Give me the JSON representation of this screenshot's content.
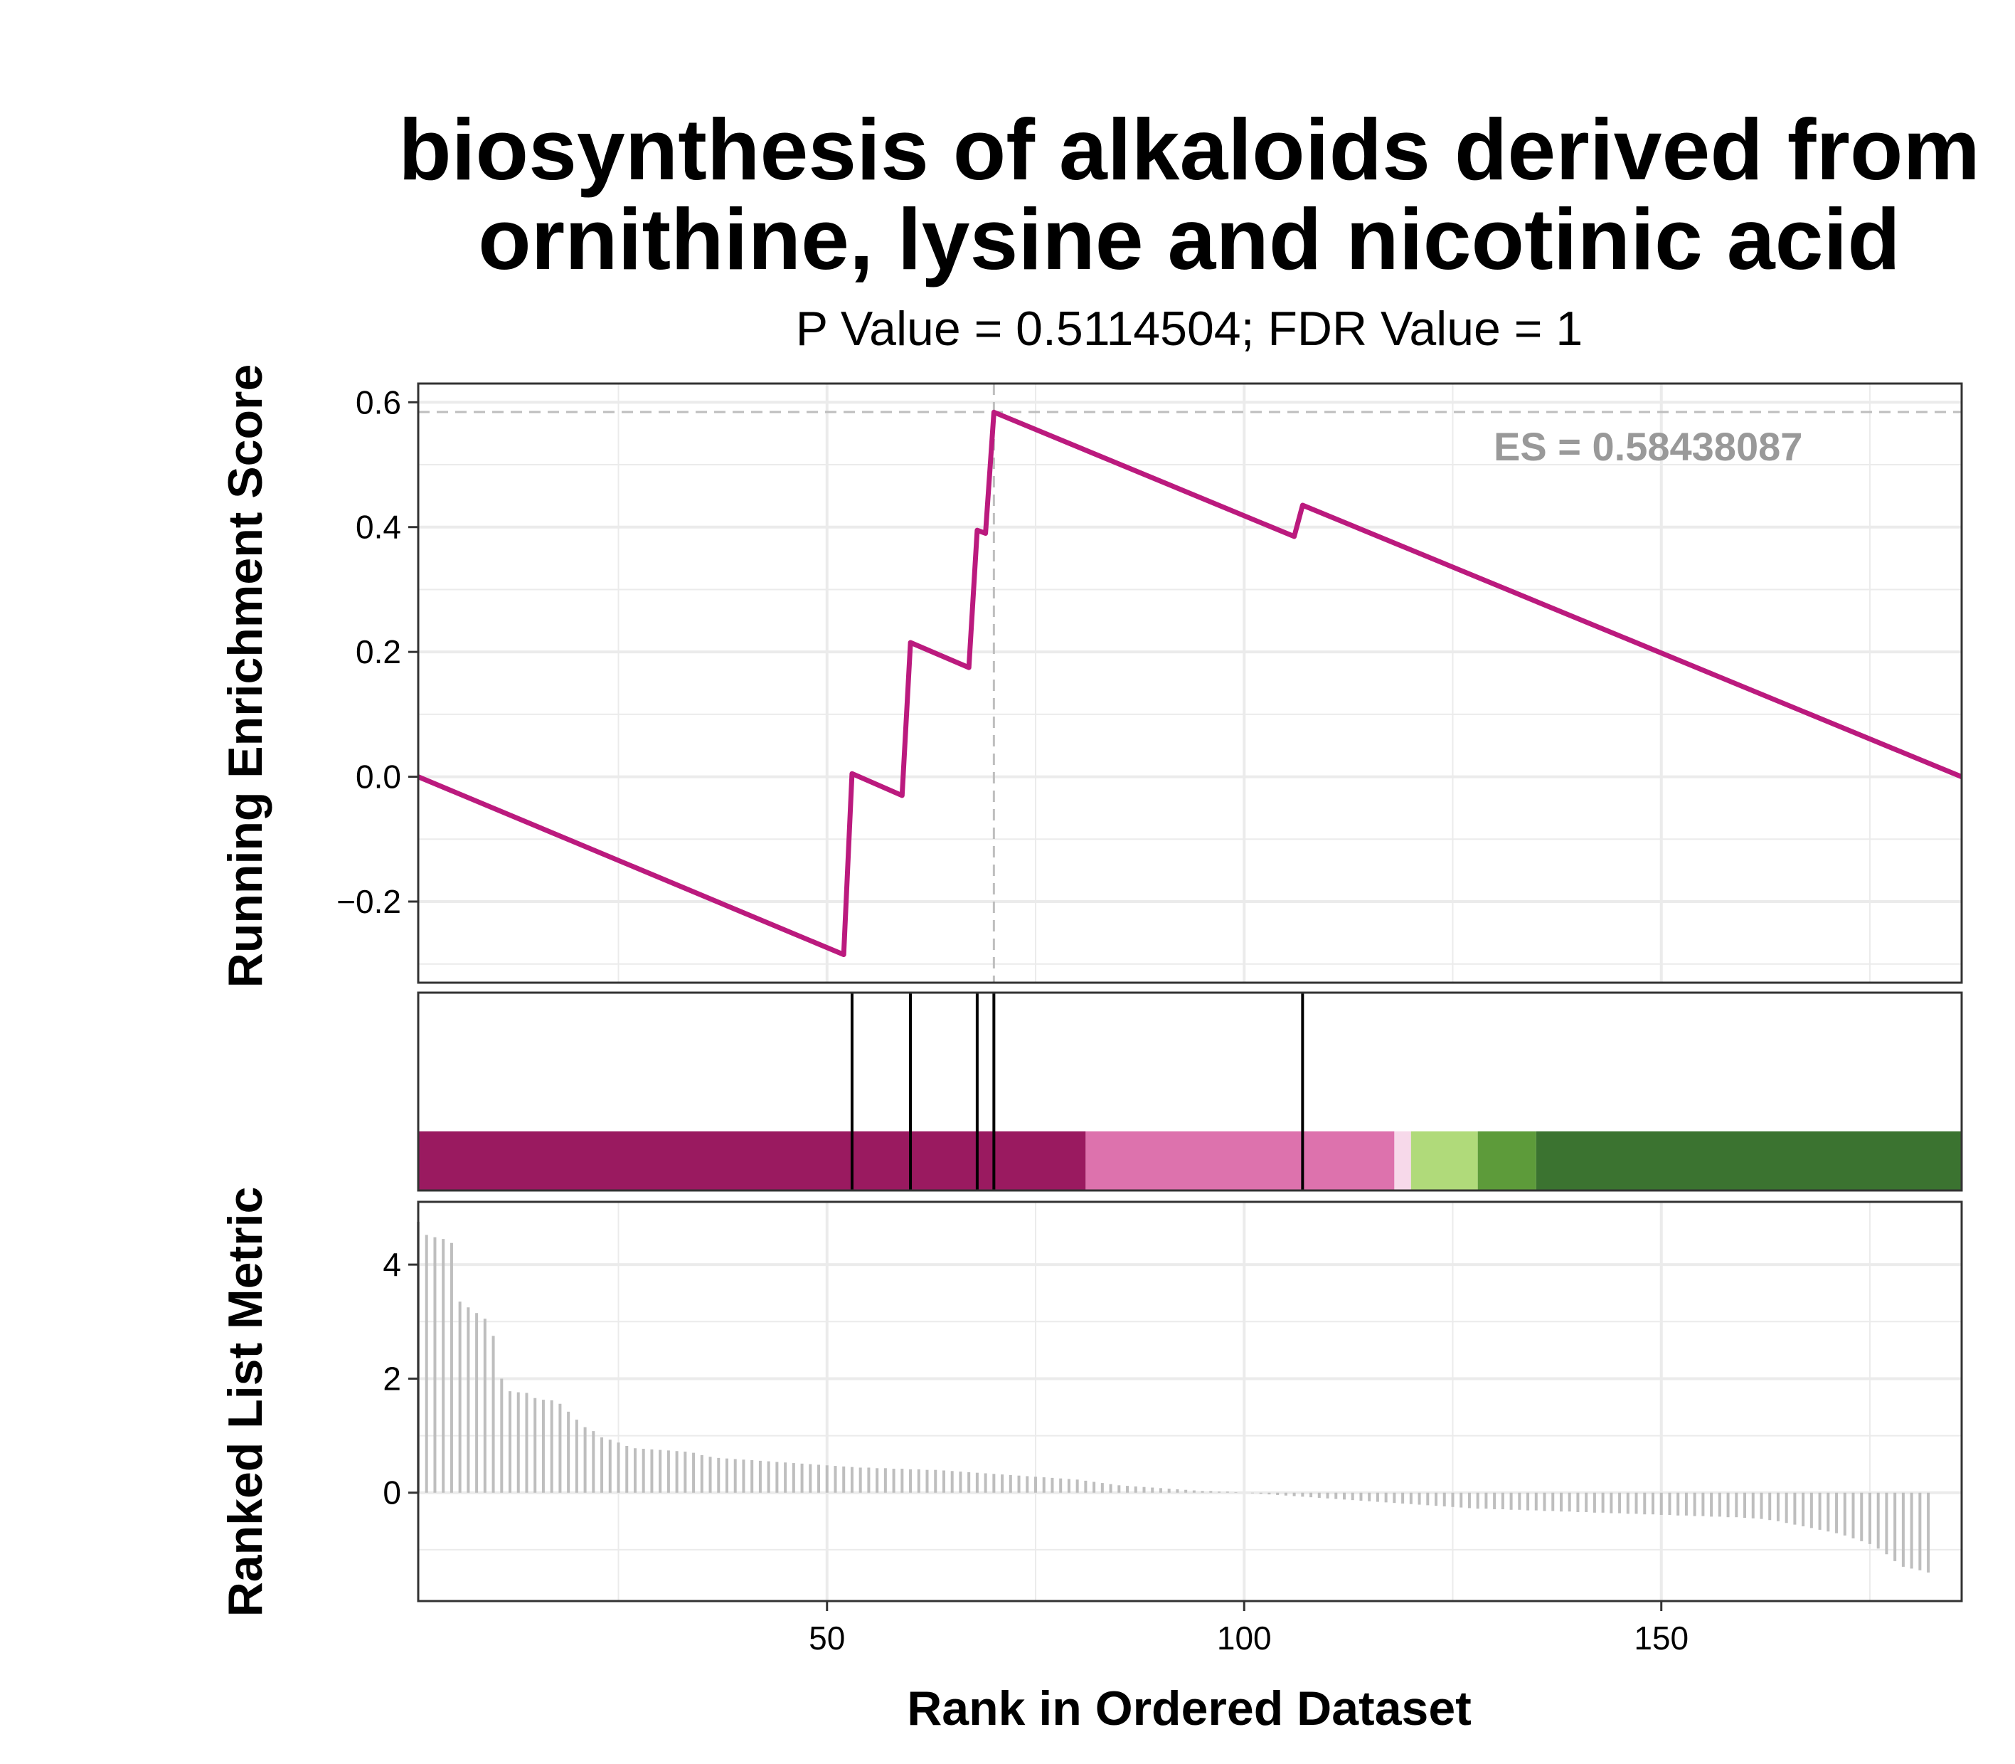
{
  "title_lines": [
    "biosynthesis of alkaloids derived from",
    "ornithine, lysine and nicotinic acid"
  ],
  "subtitle": "P Value = 0.5114504; FDR Value = 1",
  "es_label": "ES = 0.58438087",
  "colors": {
    "es_line": "#BB1A7E",
    "hit_line": "#000000",
    "metric_bar": "#BEBEBE",
    "grid": "#EBEBEB",
    "ref_line": "#BEBEBE",
    "heatmap": [
      "#9A1A60",
      "#DD72AD",
      "#F7D9EA",
      "#B0DA7A",
      "#5D9B3A",
      "#3B7330"
    ]
  },
  "chart_data": [
    {
      "type": "line",
      "panel": "running-enrichment-score",
      "ylabel": "Running Enrichment Score",
      "ylim": [
        -0.33,
        0.63
      ],
      "y_ticks": [
        -0.2,
        0.0,
        0.2,
        0.4,
        0.6
      ],
      "y_tick_labels": [
        "−0.2",
        "0.0",
        "0.2",
        "0.4",
        "0.6"
      ],
      "xlim": [
        1,
        186
      ],
      "grid": true,
      "series": [
        {
          "x": [
            1,
            52,
            53,
            59,
            60,
            67,
            68,
            69,
            70,
            106,
            107,
            186
          ],
          "y": [
            0.0,
            -0.285,
            0.005,
            -0.03,
            0.215,
            0.175,
            0.395,
            0.39,
            0.584,
            0.385,
            0.435,
            0.0
          ]
        }
      ],
      "es": 0.58438087,
      "es_rank": 70
    },
    {
      "type": "hits",
      "panel": "gene-set-hits",
      "hit_ranks": [
        53,
        60,
        68,
        70,
        107
      ],
      "heatmap_segments": [
        {
          "start": 1,
          "end": 81,
          "color_index": 0
        },
        {
          "start": 81,
          "end": 118,
          "color_index": 1
        },
        {
          "start": 118,
          "end": 120,
          "color_index": 2
        },
        {
          "start": 120,
          "end": 128,
          "color_index": 3
        },
        {
          "start": 128,
          "end": 135,
          "color_index": 4
        },
        {
          "start": 135,
          "end": 186,
          "color_index": 5
        }
      ]
    },
    {
      "type": "bar",
      "panel": "ranked-list-metric",
      "ylabel": "Ranked List Metric",
      "xlabel": "Rank in Ordered Dataset",
      "ylim": [
        -1.9,
        5.1
      ],
      "y_ticks": [
        0,
        2,
        4
      ],
      "y_tick_labels": [
        "0",
        "2",
        "4"
      ],
      "x_ticks": [
        50,
        100,
        150
      ],
      "x_tick_labels": [
        "50",
        "100",
        "150"
      ],
      "xlim": [
        1,
        186
      ],
      "grid": true,
      "values": [
        4.75,
        4.52,
        4.48,
        4.45,
        4.38,
        3.35,
        3.25,
        3.15,
        3.05,
        2.75,
        2.0,
        1.78,
        1.76,
        1.75,
        1.66,
        1.63,
        1.62,
        1.56,
        1.42,
        1.28,
        1.15,
        1.08,
        0.97,
        0.93,
        0.88,
        0.82,
        0.78,
        0.77,
        0.76,
        0.75,
        0.74,
        0.73,
        0.72,
        0.7,
        0.66,
        0.63,
        0.61,
        0.6,
        0.59,
        0.58,
        0.57,
        0.56,
        0.55,
        0.54,
        0.53,
        0.52,
        0.51,
        0.5,
        0.49,
        0.48,
        0.47,
        0.46,
        0.45,
        0.44,
        0.44,
        0.43,
        0.43,
        0.42,
        0.42,
        0.41,
        0.41,
        0.4,
        0.4,
        0.39,
        0.38,
        0.37,
        0.36,
        0.35,
        0.34,
        0.33,
        0.32,
        0.31,
        0.3,
        0.29,
        0.28,
        0.27,
        0.26,
        0.25,
        0.24,
        0.23,
        0.21,
        0.19,
        0.17,
        0.15,
        0.13,
        0.12,
        0.11,
        0.1,
        0.09,
        0.08,
        0.07,
        0.06,
        0.05,
        0.04,
        0.03,
        0.03,
        0.02,
        0.02,
        0.01,
        0.0,
        -0.01,
        -0.02,
        -0.03,
        -0.04,
        -0.05,
        -0.06,
        -0.07,
        -0.08,
        -0.09,
        -0.1,
        -0.11,
        -0.12,
        -0.13,
        -0.14,
        -0.15,
        -0.16,
        -0.17,
        -0.18,
        -0.19,
        -0.2,
        -0.21,
        -0.22,
        -0.23,
        -0.24,
        -0.25,
        -0.26,
        -0.27,
        -0.28,
        -0.28,
        -0.29,
        -0.29,
        -0.3,
        -0.3,
        -0.31,
        -0.31,
        -0.32,
        -0.32,
        -0.33,
        -0.33,
        -0.34,
        -0.34,
        -0.35,
        -0.35,
        -0.36,
        -0.36,
        -0.37,
        -0.37,
        -0.38,
        -0.38,
        -0.39,
        -0.39,
        -0.4,
        -0.4,
        -0.41,
        -0.41,
        -0.42,
        -0.42,
        -0.43,
        -0.43,
        -0.44,
        -0.45,
        -0.46,
        -0.48,
        -0.5,
        -0.53,
        -0.56,
        -0.59,
        -0.62,
        -0.65,
        -0.68,
        -0.71,
        -0.75,
        -0.8,
        -0.85,
        -0.9,
        -0.98,
        -1.08,
        -1.2,
        -1.3,
        -1.33,
        -1.36,
        -1.4
      ]
    }
  ]
}
